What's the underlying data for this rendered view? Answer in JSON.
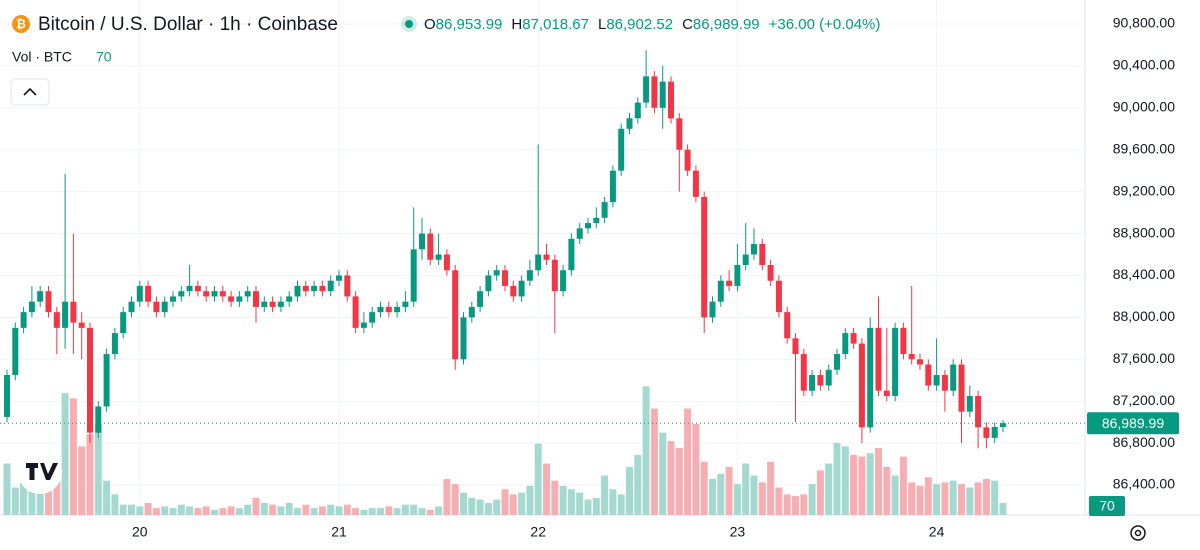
{
  "chart_data": {
    "type": "candlestick",
    "title": "Bitcoin / U.S. Dollar · 1h · Coinbase",
    "legend": [
      {
        "key": "O",
        "value": "86,953.99"
      },
      {
        "key": "H",
        "value": "87,018.67"
      },
      {
        "key": "L",
        "value": "86,902.52"
      },
      {
        "key": "C",
        "value": "86,989.99"
      }
    ],
    "change": "+36.00 (+0.04%)",
    "volume_title": "Vol · BTC",
    "last_price_label": "86,989.99",
    "up_color": "#089981",
    "down_color": "#f23645",
    "volume_up_color": "#a3d9d0",
    "volume_down_color": "#f7aeb3",
    "grid": true,
    "ylim": [
      86114,
      91029
    ],
    "yticks": [
      {
        "value": 86400,
        "label": "86,400.00"
      },
      {
        "value": 86800,
        "label": "86,800.00"
      },
      {
        "value": 87200,
        "label": "87,200.00"
      },
      {
        "value": 87600,
        "label": "87,600.00"
      },
      {
        "value": 88000,
        "label": "88,000.00"
      },
      {
        "value": 88400,
        "label": "88,400.00"
      },
      {
        "value": 88800,
        "label": "88,800.00"
      },
      {
        "value": 89200,
        "label": "89,200.00"
      },
      {
        "value": 89600,
        "label": "89,600.00"
      },
      {
        "value": 90000,
        "label": "90,000.00"
      },
      {
        "value": 90400,
        "label": "90,400.00"
      },
      {
        "value": 90800,
        "label": "90,800.00"
      }
    ],
    "volume_lim": [
      0,
      3000
    ],
    "categories": [
      null,
      null,
      null,
      null,
      null,
      null,
      null,
      null,
      null,
      null,
      null,
      null,
      null,
      null,
      null,
      null,
      "20",
      null,
      null,
      null,
      null,
      null,
      null,
      null,
      null,
      null,
      null,
      null,
      null,
      null,
      null,
      null,
      null,
      null,
      null,
      null,
      null,
      null,
      null,
      null,
      "21",
      null,
      null,
      null,
      null,
      null,
      null,
      null,
      null,
      null,
      null,
      null,
      null,
      null,
      null,
      null,
      null,
      null,
      null,
      null,
      null,
      null,
      null,
      null,
      "22",
      null,
      null,
      null,
      null,
      null,
      null,
      null,
      null,
      null,
      null,
      null,
      null,
      null,
      null,
      null,
      null,
      null,
      null,
      null,
      null,
      null,
      null,
      null,
      "23",
      null,
      null,
      null,
      null,
      null,
      null,
      null,
      null,
      null,
      null,
      null,
      null,
      null,
      null,
      null,
      null,
      null,
      null,
      null,
      null,
      null,
      null,
      null,
      "24",
      null,
      null,
      null,
      null,
      null,
      null,
      null,
      null
    ],
    "open": [
      87050,
      87450,
      87900,
      88050,
      88150,
      88250,
      88050,
      87900,
      88150,
      87950,
      87900,
      86900,
      87150,
      87650,
      87850,
      88050,
      88150,
      88300,
      88150,
      88050,
      88150,
      88200,
      88250,
      88300,
      88250,
      88200,
      88250,
      88200,
      88150,
      88200,
      88250,
      88100,
      88150,
      88100,
      88150,
      88200,
      88300,
      88250,
      88300,
      88250,
      88350,
      88400,
      88200,
      87900,
      87950,
      88050,
      88100,
      88050,
      88100,
      88150,
      88650,
      88800,
      88550,
      88600,
      88450,
      87600,
      88000,
      88100,
      88250,
      88400,
      88450,
      88300,
      88200,
      88350,
      88450,
      88600,
      88550,
      88250,
      88450,
      88750,
      88850,
      88900,
      88950,
      89100,
      89400,
      89800,
      89900,
      90050,
      90300,
      90000,
      90250,
      89900,
      89600,
      89400,
      89150,
      88000,
      88150,
      88350,
      88300,
      88500,
      88600,
      88700,
      88500,
      88350,
      88050,
      87800,
      87650,
      87300,
      87450,
      87350,
      87500,
      87650,
      87850,
      87750,
      86950,
      87900,
      87300,
      87250,
      87900,
      87650,
      87600,
      87550,
      87350,
      87450,
      87300,
      87550,
      87100,
      87250,
      86950,
      86850,
      86953.99
    ],
    "high": [
      87500,
      87950,
      88100,
      88300,
      88300,
      88300,
      88100,
      89370,
      88800,
      88050,
      87950,
      87200,
      87700,
      87900,
      88100,
      88200,
      88350,
      88350,
      88200,
      88200,
      88250,
      88300,
      88500,
      88350,
      88300,
      88300,
      88300,
      88250,
      88250,
      88300,
      88300,
      88200,
      88200,
      88200,
      88250,
      88350,
      88350,
      88350,
      88350,
      88400,
      88450,
      88450,
      88250,
      88050,
      88100,
      88150,
      88150,
      88150,
      88250,
      89050,
      88950,
      88850,
      88800,
      88650,
      88500,
      88050,
      88150,
      88300,
      88450,
      88500,
      88500,
      88350,
      88400,
      88550,
      89650,
      88700,
      88600,
      88500,
      88800,
      88900,
      88950,
      89050,
      89150,
      89450,
      89850,
      89950,
      90100,
      90550,
      90350,
      90400,
      90300,
      89950,
      89650,
      89450,
      89200,
      88200,
      88400,
      88450,
      88700,
      88900,
      88850,
      88750,
      88550,
      88400,
      88100,
      87850,
      87700,
      87500,
      87500,
      87550,
      87700,
      87900,
      87900,
      87800,
      88000,
      88200,
      87900,
      87950,
      87950,
      88300,
      87650,
      87600,
      87800,
      87500,
      87600,
      87600,
      87350,
      87300,
      87000,
      87000,
      87018.67
    ],
    "low": [
      87000,
      87400,
      87850,
      88000,
      88100,
      88000,
      87650,
      87700,
      87650,
      87600,
      86800,
      86850,
      87100,
      87600,
      87800,
      88000,
      88100,
      88100,
      88000,
      88000,
      88100,
      88150,
      88200,
      88200,
      88150,
      88150,
      88150,
      88100,
      88100,
      88150,
      87950,
      88050,
      88050,
      88050,
      88100,
      88150,
      88200,
      88200,
      88200,
      88200,
      88300,
      88150,
      87850,
      87850,
      87900,
      88000,
      88000,
      88000,
      88050,
      88100,
      88550,
      88500,
      88500,
      88400,
      87500,
      87550,
      87950,
      88050,
      88200,
      88350,
      88250,
      88150,
      88150,
      88300,
      88400,
      88500,
      87850,
      88200,
      88400,
      88700,
      88800,
      88850,
      88900,
      89050,
      89350,
      89750,
      89850,
      90000,
      89950,
      89800,
      89850,
      89200,
      89350,
      89100,
      87850,
      87950,
      88100,
      88250,
      88250,
      88450,
      88550,
      88450,
      88300,
      88000,
      87750,
      87000,
      87250,
      87250,
      87300,
      87300,
      87450,
      87600,
      87700,
      86800,
      86900,
      87250,
      87200,
      87200,
      87600,
      87550,
      87500,
      87300,
      87300,
      87100,
      87250,
      86800,
      87050,
      86750,
      86750,
      86800,
      86902.52
    ],
    "close": [
      87450,
      87900,
      88050,
      88150,
      88250,
      88050,
      87900,
      88150,
      87950,
      87900,
      86900,
      87150,
      87650,
      87850,
      88050,
      88150,
      88300,
      88150,
      88050,
      88150,
      88200,
      88250,
      88300,
      88250,
      88200,
      88250,
      88200,
      88150,
      88200,
      88250,
      88100,
      88150,
      88100,
      88150,
      88200,
      88300,
      88250,
      88300,
      88250,
      88350,
      88400,
      88200,
      87900,
      87950,
      88050,
      88100,
      88050,
      88100,
      88150,
      88650,
      88800,
      88550,
      88600,
      88450,
      87600,
      88000,
      88100,
      88250,
      88400,
      88450,
      88300,
      88200,
      88350,
      88450,
      88600,
      88550,
      88250,
      88450,
      88750,
      88850,
      88900,
      88950,
      89100,
      89400,
      89800,
      89900,
      90050,
      90300,
      90000,
      90250,
      89900,
      89600,
      89400,
      89150,
      88000,
      88150,
      88350,
      88300,
      88500,
      88600,
      88700,
      88500,
      88350,
      88050,
      87800,
      87650,
      87300,
      87450,
      87350,
      87500,
      87650,
      87850,
      87750,
      86950,
      87900,
      87300,
      87250,
      87900,
      87650,
      87600,
      87550,
      87350,
      87450,
      87300,
      87550,
      87100,
      87250,
      86950,
      86850,
      86953.99,
      86989.99
    ],
    "volume": [
      300,
      160,
      250,
      220,
      250,
      170,
      200,
      710,
      680,
      400,
      470,
      530,
      200,
      120,
      60,
      60,
      50,
      70,
      40,
      50,
      40,
      60,
      50,
      40,
      50,
      30,
      40,
      50,
      40,
      60,
      100,
      70,
      60,
      50,
      70,
      40,
      60,
      40,
      50,
      60,
      50,
      60,
      40,
      30,
      40,
      40,
      50,
      40,
      60,
      60,
      40,
      30,
      50,
      210,
      180,
      130,
      100,
      90,
      70,
      90,
      150,
      120,
      130,
      170,
      415,
      300,
      200,
      170,
      150,
      130,
      90,
      100,
      230,
      150,
      120,
      280,
      350,
      750,
      620,
      480,
      430,
      390,
      620,
      530,
      310,
      210,
      240,
      280,
      180,
      300,
      230,
      190,
      310,
      160,
      120,
      110,
      120,
      180,
      260,
      300,
      420,
      400,
      350,
      340,
      360,
      390,
      280,
      230,
      340,
      190,
      170,
      220,
      180,
      190,
      200,
      180,
      160,
      190,
      210,
      200,
      70
    ]
  }
}
